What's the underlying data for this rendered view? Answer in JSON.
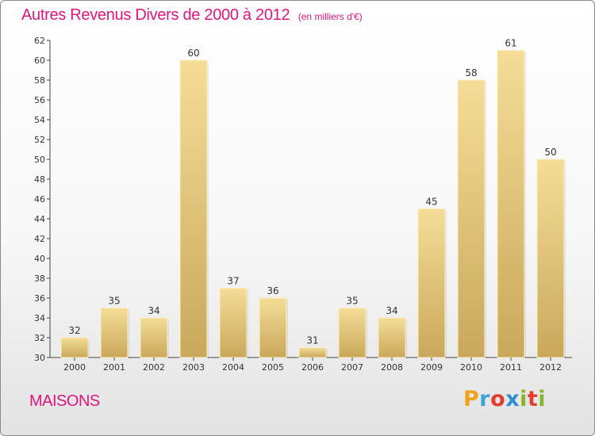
{
  "title": "Autres Revenus Divers de 2000 à 2012",
  "unit_note": "(en milliers d'€)",
  "commune": "MAISONS",
  "logo": {
    "text": "Proxiti",
    "letters": [
      "P",
      "r",
      "o",
      "x",
      "i",
      "t",
      "i"
    ],
    "colors": [
      "#f0a21a",
      "#3aa5d8",
      "#e43c2d",
      "#2a8fd0",
      "#86b62a",
      "#e43c2d",
      "#86b62a"
    ]
  },
  "colors": {
    "title": "#e0157d",
    "bar_light": "#f5dd97",
    "bar_dark": "#c9a85b",
    "grid": "#dddddd"
  },
  "chart_data": {
    "type": "bar",
    "categories": [
      "2000",
      "2001",
      "2002",
      "2003",
      "2004",
      "2005",
      "2006",
      "2007",
      "2008",
      "2009",
      "2010",
      "2011",
      "2012"
    ],
    "values": [
      32,
      35,
      34,
      60,
      37,
      36,
      31,
      35,
      34,
      45,
      58,
      61,
      50
    ],
    "yticks": [
      30,
      32,
      34,
      36,
      38,
      40,
      42,
      44,
      46,
      48,
      50,
      52,
      54,
      56,
      58,
      60,
      62
    ],
    "ylim": [
      30,
      62
    ],
    "grid": false
  }
}
